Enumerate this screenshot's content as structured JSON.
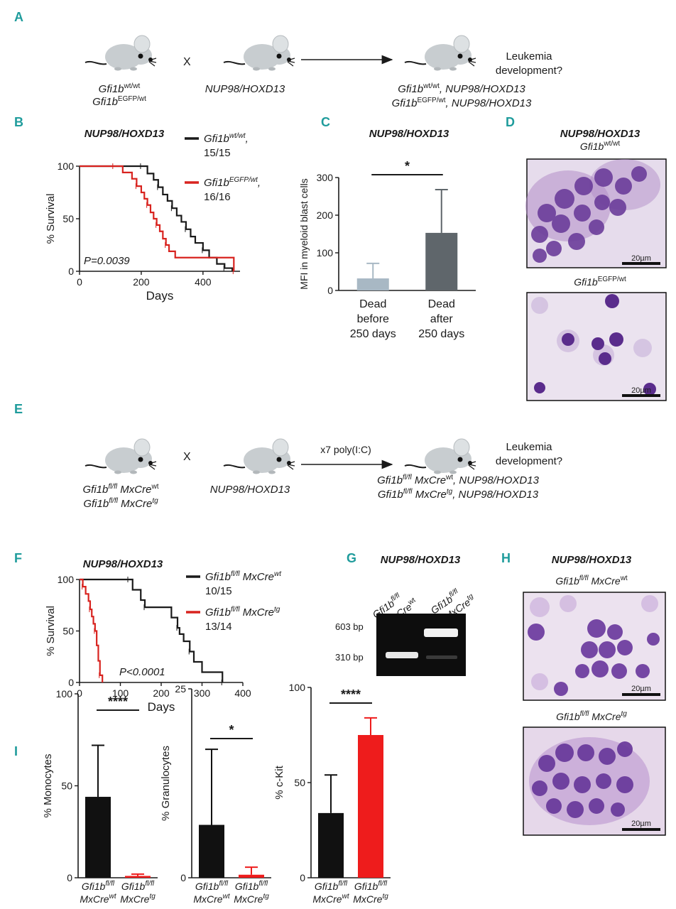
{
  "panels": {
    "A": {
      "letter": "A",
      "cross_symbol": "X",
      "mouse1_line1": "Gfi1b",
      "mouse1_line1_sup": "wt/wt",
      "mouse1_line2": "Gfi1b",
      "mouse1_line2_sup": "EGFP/wt",
      "mouse2": "NUP98/HOXD13",
      "question_line1": "Leukemia",
      "question_line2": "development?",
      "result_line1_a": "Gfi1b",
      "result_line1_sup": "wt/wt",
      "result_line1_b": ", NUP98/HOXD13",
      "result_line2_a": "Gfi1b",
      "result_line2_sup": "EGFP/wt",
      "result_line2_b": ", NUP98/HOXD13"
    },
    "E": {
      "letter": "E",
      "cross_symbol": "X",
      "mouse1_line1_a": "Gfi1b",
      "mouse1_line1_sup": "fl/fl",
      "mouse1_line1_b": " MxCre",
      "mouse1_line1_sup2": "wt",
      "mouse1_line2_a": "Gfi1b",
      "mouse1_line2_sup": "fl/fl",
      "mouse1_line2_b": " MxCre",
      "mouse1_line2_sup2": "tg",
      "mouse2": "NUP98/HOXD13",
      "treatment": "x7 poly(I:C)",
      "question_line1": "Leukemia",
      "question_line2": "development?",
      "result_line1_a": "Gfi1b",
      "result_line1_sup": "fl/fl",
      "result_line1_b": " MxCre",
      "result_line1_sup2": "wt",
      "result_line1_c": ", NUP98/HOXD13",
      "result_line2_a": "Gfi1b",
      "result_line2_sup": "fl/fl",
      "result_line2_b": " MxCre",
      "result_line2_sup2": "tg",
      "result_line2_c": ", NUP98/HOXD13"
    },
    "G": {
      "letter": "G",
      "title": "NUP98/HOXD13",
      "lane1_a": "Gfi1b",
      "lane1_sup": "fl/fl",
      "lane1_b": "MxCre",
      "lane1_sup2": "wt",
      "lane2_a": "Gfi1b",
      "lane2_sup": "fl/fl",
      "lane2_b": "MxCre",
      "lane2_sup2": "tg",
      "band_upper": "603 bp",
      "band_lower": "310 bp"
    },
    "D": {
      "letter": "D",
      "title": "NUP98/HOXD13",
      "top_a": "Gfi1b",
      "top_sup": "wt/wt",
      "bottom_a": "Gfi1b",
      "bottom_sup": "EGFP/wt",
      "scale": "20µm"
    },
    "H": {
      "letter": "H",
      "title": "NUP98/HOXD13",
      "top_a": "Gfi1b",
      "top_sup": "fl/fl",
      "top_b": " MxCre",
      "top_sup2": "wt",
      "bottom_a": "Gfi1b",
      "bottom_sup": "fl/fl",
      "bottom_b": " MxCre",
      "bottom_sup2": "tg",
      "scale": "20µm"
    }
  },
  "colors": {
    "panel_label": "#1f9c9c",
    "wt_line": "#1a1a1a",
    "mut_line": "#d8231f",
    "bar_light": "#a8b8c4",
    "bar_dark": "#5f666b",
    "bar_black": "#111111",
    "bar_red": "#ee1c1c",
    "mouse": "#c8cdd0"
  },
  "chart_data": [
    {
      "id": "B",
      "letter": "B",
      "type": "line",
      "title": "NUP98/HOXD13",
      "xlabel": "Days",
      "ylabel": "% Survival",
      "xlim": [
        0,
        520
      ],
      "ylim": [
        0,
        100
      ],
      "xticks": [
        0,
        200,
        400
      ],
      "yticks": [
        0,
        50,
        100
      ],
      "pvalue": "P=0.0039",
      "series": [
        {
          "name_a": "Gfi1b",
          "name_sup": "wt/wt",
          "name_b": ",",
          "count": "15/15",
          "color": "#1a1a1a",
          "x": [
            0,
            200,
            220,
            240,
            255,
            270,
            285,
            300,
            315,
            330,
            345,
            360,
            375,
            400,
            420,
            445,
            470,
            495
          ],
          "y": [
            100,
            100,
            93,
            87,
            80,
            73,
            67,
            60,
            53,
            47,
            40,
            33,
            27,
            20,
            13,
            7,
            3,
            0
          ]
        },
        {
          "name_a": "Gfi1b",
          "name_sup": "EGFP/wt",
          "name_b": ",",
          "count": "16/16",
          "color": "#d8231f",
          "x": [
            0,
            110,
            140,
            170,
            185,
            200,
            210,
            220,
            230,
            240,
            250,
            260,
            270,
            280,
            290,
            310,
            500
          ],
          "y": [
            100,
            100,
            94,
            88,
            81,
            75,
            69,
            63,
            56,
            50,
            44,
            38,
            31,
            25,
            19,
            13,
            0
          ]
        }
      ]
    },
    {
      "id": "C",
      "letter": "C",
      "type": "bar",
      "title": "NUP98/HOXD13",
      "ylabel": "MFI in myeloid blast cells",
      "ylim": [
        0,
        300
      ],
      "yticks": [
        0,
        100,
        200,
        300
      ],
      "categories": [
        [
          "Dead",
          "before",
          "250 days"
        ],
        [
          "Dead",
          "after",
          "250 days"
        ]
      ],
      "values": [
        32,
        153
      ],
      "errors": [
        40,
        115
      ],
      "colors": [
        "#a8b8c4",
        "#5f666b"
      ],
      "significance": "*"
    },
    {
      "id": "F",
      "letter": "F",
      "type": "line",
      "title": "NUP98/HOXD13",
      "xlabel": "Days",
      "ylabel": "% Survival",
      "xlim": [
        0,
        400
      ],
      "ylim": [
        0,
        100
      ],
      "xticks": [
        0,
        100,
        200,
        300,
        400
      ],
      "yticks": [
        0,
        50,
        100
      ],
      "pvalue": "P<0.0001",
      "series": [
        {
          "name_a": "Gfi1b",
          "name_sup": "fl/fl",
          "name_b": " MxCre",
          "name_sup2": "wt",
          "count": "10/15",
          "color": "#1a1a1a",
          "x": [
            0,
            120,
            130,
            150,
            160,
            210,
            225,
            240,
            245,
            255,
            270,
            280,
            300,
            350
          ],
          "y": [
            100,
            100,
            90,
            80,
            73,
            73,
            63,
            53,
            47,
            40,
            30,
            20,
            10,
            0
          ]
        },
        {
          "name_a": "Gfi1b",
          "name_sup": "fl/fl",
          "name_b": " MxCre",
          "name_sup2": "tg",
          "count": "13/14",
          "color": "#d8231f",
          "x": [
            0,
            8,
            15,
            22,
            26,
            30,
            34,
            38,
            42,
            46,
            50,
            56
          ],
          "y": [
            100,
            93,
            86,
            79,
            71,
            64,
            57,
            50,
            36,
            21,
            7,
            0
          ]
        }
      ]
    },
    {
      "id": "I1",
      "letter": "I",
      "type": "bar",
      "ylabel": "% Monocytes",
      "ylim": [
        0,
        100
      ],
      "yticks": [
        0,
        50,
        100
      ],
      "categories": [
        {
          "a": "Gfi1b",
          "sup": "fl/fl",
          "b": "MxCre",
          "sup2": "wt"
        },
        {
          "a": "Gfi1b",
          "sup": "fl/fl",
          "b": "MxCre",
          "sup2": "tg"
        }
      ],
      "values": [
        44,
        1
      ],
      "errors": [
        28,
        1
      ],
      "colors": [
        "#111111",
        "#ee1c1c"
      ],
      "significance": "****"
    },
    {
      "id": "I2",
      "type": "bar",
      "ylabel": "% Granulocytes",
      "ylim": [
        0,
        25
      ],
      "yticks": [
        0,
        25
      ],
      "categories": [
        {
          "a": "Gfi1b",
          "sup": "fl/fl",
          "b": "MxCre",
          "sup2": "wt"
        },
        {
          "a": "Gfi1b",
          "sup": "fl/fl",
          "b": "MxCre",
          "sup2": "tg"
        }
      ],
      "values": [
        7,
        0.4
      ],
      "errors": [
        10,
        1
      ],
      "colors": [
        "#111111",
        "#ee1c1c"
      ],
      "significance": "*"
    },
    {
      "id": "I3",
      "type": "bar",
      "ylabel": "% c-Kit",
      "ylim": [
        0,
        100
      ],
      "yticks": [
        0,
        50,
        100
      ],
      "categories": [
        {
          "a": "Gfi1b",
          "sup": "fl/fl",
          "b": "MxCre",
          "sup2": "wt"
        },
        {
          "a": "Gfi1b",
          "sup": "fl/fl",
          "b": "MxCre",
          "sup2": "tg"
        }
      ],
      "values": [
        34,
        75
      ],
      "errors": [
        20,
        9
      ],
      "colors": [
        "#111111",
        "#ee1c1c"
      ],
      "significance": "****"
    }
  ]
}
